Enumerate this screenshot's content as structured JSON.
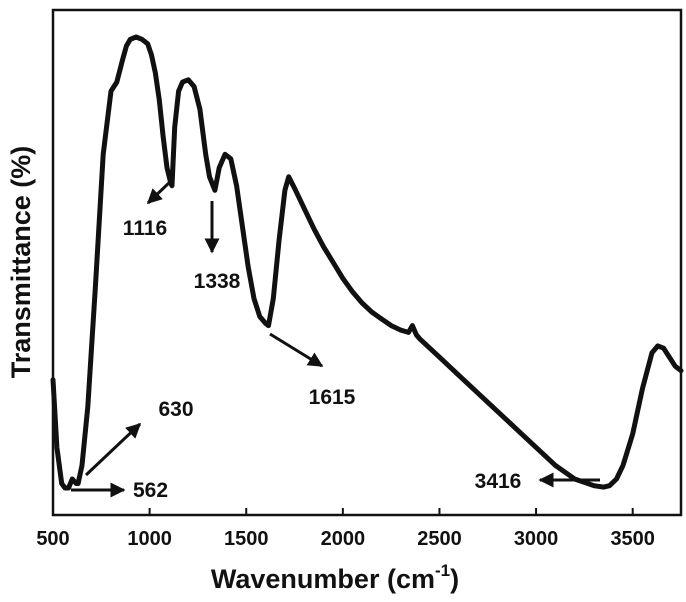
{
  "chart_data": {
    "type": "line",
    "title": "",
    "xlabel": "Wavenumber (cm",
    "xlabel_sup": "-1",
    "xlabel_close": ")",
    "ylabel": "Transmittance (%)",
    "xlim": [
      500,
      3750
    ],
    "x_ticks": [
      500,
      1000,
      1500,
      2000,
      2500,
      3000,
      3500
    ],
    "y_ticks_shown": false,
    "grid": false,
    "legend": "none",
    "line_color": "#111111",
    "series": [
      {
        "x": [
          500,
          520,
          545,
          562,
          580,
          600,
          620,
          630,
          650,
          680,
          720,
          760,
          800,
          830,
          860,
          880,
          900,
          930,
          960,
          990,
          1010,
          1030,
          1050,
          1070,
          1090,
          1110,
          1116,
          1130,
          1150,
          1170,
          1200,
          1230,
          1260,
          1290,
          1310,
          1338,
          1360,
          1390,
          1420,
          1450,
          1480,
          1510,
          1540,
          1570,
          1600,
          1615,
          1640,
          1670,
          1700,
          1720,
          1750,
          1800,
          1850,
          1900,
          1950,
          2000,
          2050,
          2100,
          2150,
          2200,
          2250,
          2300,
          2340,
          2360,
          2380,
          2400,
          2500,
          2600,
          2700,
          2800,
          2900,
          3000,
          3100,
          3200,
          3300,
          3350,
          3380,
          3416,
          3450,
          3500,
          3550,
          3600,
          3630,
          3660,
          3690,
          3720,
          3750
        ],
        "y": [
          24,
          9,
          1,
          0,
          0,
          2,
          1,
          1,
          5,
          18,
          45,
          74,
          88,
          90,
          95,
          98,
          99.5,
          100,
          99.5,
          98.5,
          96,
          92,
          86,
          78,
          71,
          67.5,
          67,
          80,
          88,
          90,
          90.5,
          89,
          84,
          74,
          69,
          66,
          71,
          74,
          73,
          67,
          58,
          49,
          42,
          38,
          36.5,
          36,
          42,
          55,
          66,
          69,
          66.5,
          62,
          57.5,
          53.5,
          50,
          46.5,
          43.5,
          41,
          39,
          37.5,
          36,
          35,
          34.5,
          36,
          34,
          33,
          29,
          25,
          21,
          17,
          13,
          9,
          5,
          2,
          0.5,
          0.2,
          0.5,
          2,
          5,
          12,
          22,
          30,
          31.5,
          31,
          29,
          27,
          26
        ]
      }
    ],
    "annotations": [
      {
        "label": "1116",
        "x": 1116,
        "y": 67
      },
      {
        "label": "1338",
        "x": 1338,
        "y": 66
      },
      {
        "label": "1615",
        "x": 1615,
        "y": 36
      },
      {
        "label": "630",
        "x": 630,
        "y": 1
      },
      {
        "label": "562",
        "x": 562,
        "y": 0
      },
      {
        "label": "3416",
        "x": 3416,
        "y": 2
      }
    ]
  }
}
